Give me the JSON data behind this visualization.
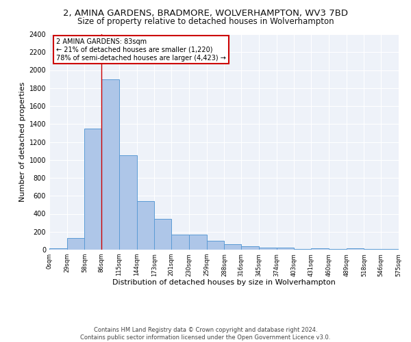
{
  "title1": "2, AMINA GARDENS, BRADMORE, WOLVERHAMPTON, WV3 7BD",
  "title2": "Size of property relative to detached houses in Wolverhampton",
  "xlabel": "Distribution of detached houses by size in Wolverhampton",
  "ylabel": "Number of detached properties",
  "footer1": "Contains HM Land Registry data © Crown copyright and database right 2024.",
  "footer2": "Contains public sector information licensed under the Open Government Licence v3.0.",
  "annotation_line1": "2 AMINA GARDENS: 83sqm",
  "annotation_line2": "← 21% of detached houses are smaller (1,220)",
  "annotation_line3": "78% of semi-detached houses are larger (4,423) →",
  "property_size": 83,
  "bar_edges": [
    0,
    29,
    58,
    86,
    115,
    144,
    173,
    201,
    230,
    259,
    288,
    316,
    345,
    374,
    403,
    431,
    460,
    489,
    518,
    546,
    575
  ],
  "bar_heights": [
    15,
    130,
    1350,
    1900,
    1050,
    540,
    340,
    170,
    170,
    100,
    60,
    40,
    25,
    20,
    10,
    15,
    5,
    15,
    5,
    5
  ],
  "bar_color": "#aec6e8",
  "bar_edge_color": "#5b9bd5",
  "vline_color": "#cc0000",
  "vline_x": 86,
  "box_color": "#cc0000",
  "ylim": [
    0,
    2400
  ],
  "yticks": [
    0,
    200,
    400,
    600,
    800,
    1000,
    1200,
    1400,
    1600,
    1800,
    2000,
    2200,
    2400
  ],
  "tick_labels": [
    "0sqm",
    "29sqm",
    "58sqm",
    "86sqm",
    "115sqm",
    "144sqm",
    "173sqm",
    "201sqm",
    "230sqm",
    "259sqm",
    "288sqm",
    "316sqm",
    "345sqm",
    "374sqm",
    "403sqm",
    "431sqm",
    "460sqm",
    "489sqm",
    "518sqm",
    "546sqm",
    "575sqm"
  ],
  "background_color": "#eef2f9",
  "grid_color": "#ffffff",
  "title1_fontsize": 9.5,
  "title2_fontsize": 8.5,
  "xlabel_fontsize": 8,
  "ylabel_fontsize": 8,
  "footer_fontsize": 6,
  "annotation_fontsize": 7,
  "ytick_fontsize": 7,
  "xtick_fontsize": 6
}
